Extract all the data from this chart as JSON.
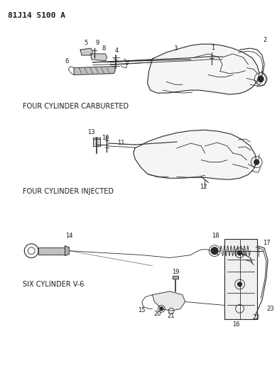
{
  "title": "81J14 5100 A",
  "background_color": "#ffffff",
  "line_color": "#2a2a2a",
  "label_color": "#1a1a1a",
  "section_labels": {
    "carbureted": "FOUR CYLINDER CARBURETED",
    "injected": "FOUR CYLINDER INJECTED",
    "six_cylinder": "SIX CYLINDER V-6"
  },
  "figsize": [
    3.9,
    5.33
  ],
  "dpi": 100
}
